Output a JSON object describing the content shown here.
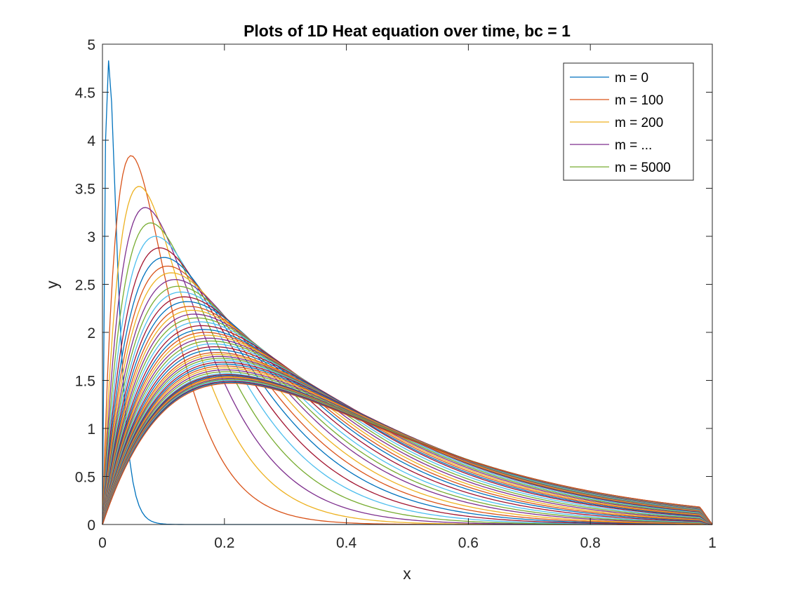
{
  "chart_data": {
    "type": "line",
    "title": "Plots of 1D Heat equation over time, bc = 1",
    "xlabel": "x",
    "ylabel": "y",
    "xlim": [
      0,
      1
    ],
    "ylim": [
      0,
      5
    ],
    "x_ticks": [
      "0",
      "0.2",
      "0.4",
      "0.6",
      "0.8",
      "1"
    ],
    "y_ticks": [
      "0",
      "0.5",
      "1",
      "1.5",
      "2",
      "2.5",
      "3",
      "3.5",
      "4",
      "4.5",
      "5"
    ],
    "grid": false,
    "box": true,
    "legend_location": "top-right",
    "legend": [
      {
        "label": "m = 0",
        "color": "#0072BD"
      },
      {
        "label": "m = 100",
        "color": "#D95319"
      },
      {
        "label": "m = 200",
        "color": "#EDB120"
      },
      {
        "label": "m = ...",
        "color": "#7E2F8E"
      },
      {
        "label": "m = 5000",
        "color": "#77AC30"
      }
    ],
    "color_order": [
      "#0072BD",
      "#D95319",
      "#EDB120",
      "#7E2F8E",
      "#77AC30",
      "#4DBEEE",
      "#A2142F"
    ],
    "series_count": 51,
    "peak_x": [
      0.01,
      0.047,
      0.06,
      0.07,
      0.079,
      0.087,
      0.094,
      0.101,
      0.107,
      0.113,
      0.119,
      0.124,
      0.129,
      0.134,
      0.139,
      0.143,
      0.147,
      0.151,
      0.155,
      0.159,
      0.163,
      0.166,
      0.169,
      0.172,
      0.175,
      0.178,
      0.181,
      0.184,
      0.186,
      0.188,
      0.19,
      0.192,
      0.194,
      0.196,
      0.198,
      0.199,
      0.2,
      0.201,
      0.202,
      0.203,
      0.204,
      0.205,
      0.206,
      0.207,
      0.208,
      0.209,
      0.21,
      0.21,
      0.211,
      0.211,
      0.212
    ],
    "peak_y": [
      4.83,
      3.84,
      3.52,
      3.3,
      3.14,
      3.0,
      2.88,
      2.78,
      2.69,
      2.62,
      2.55,
      2.48,
      2.42,
      2.37,
      2.32,
      2.27,
      2.23,
      2.19,
      2.15,
      2.11,
      2.07,
      2.03,
      2.0,
      1.97,
      1.94,
      1.91,
      1.88,
      1.85,
      1.82,
      1.79,
      1.77,
      1.75,
      1.73,
      1.71,
      1.69,
      1.67,
      1.65,
      1.63,
      1.61,
      1.59,
      1.57,
      1.56,
      1.55,
      1.54,
      1.53,
      1.52,
      1.51,
      1.5,
      1.49,
      1.48,
      1.47
    ]
  }
}
